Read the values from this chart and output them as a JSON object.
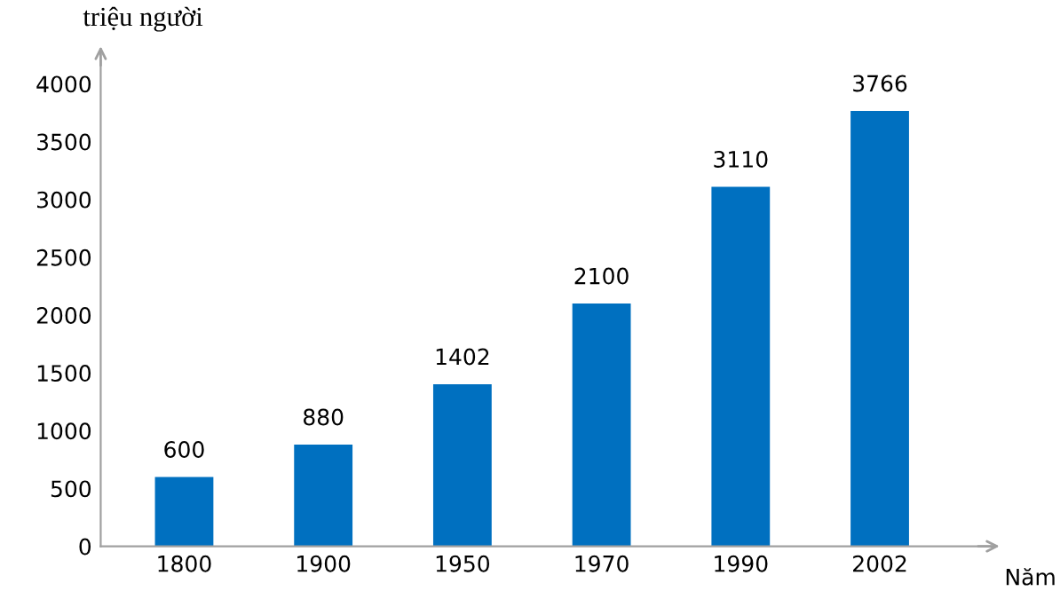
{
  "chart_data": {
    "type": "bar",
    "ylabel": "triệu người",
    "xlabel": "Năm",
    "categories": [
      "1800",
      "1900",
      "1950",
      "1970",
      "1990",
      "2002"
    ],
    "values": [
      600,
      880,
      1402,
      2100,
      3110,
      3766
    ],
    "color": "#0070c0",
    "ylim": [
      0,
      4200
    ],
    "yticks": [
      0,
      500,
      1000,
      1500,
      2000,
      2500,
      3000,
      3500,
      4000
    ],
    "data_labels": true,
    "grid": false,
    "legend": false
  }
}
